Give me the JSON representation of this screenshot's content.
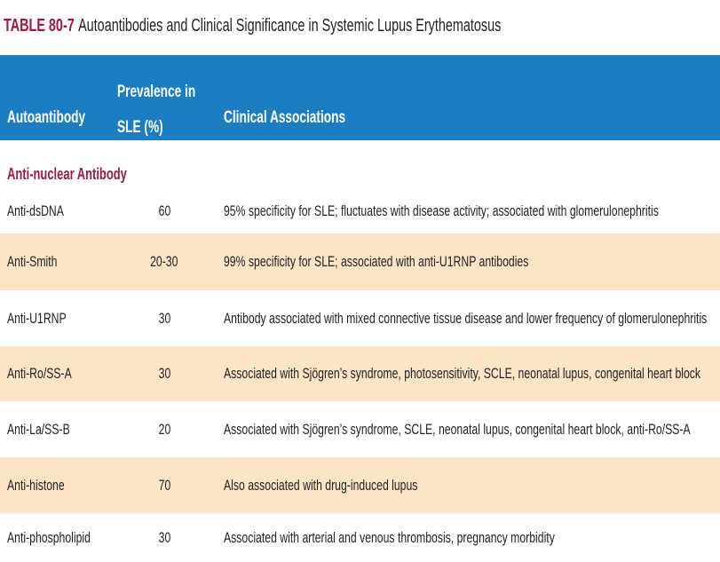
{
  "title": {
    "label": "TABLE 80-7",
    "text": "Autoantibodies and Clinical Significance in Systemic Lupus Erythematosus"
  },
  "table": {
    "headers": [
      "Autoantibody",
      "Prevalence in SLE (%)",
      "Clinical Associations"
    ],
    "section": "Anti-nuclear Antibody",
    "rows": [
      [
        "Anti-dsDNA",
        "60",
        "95% specificity for SLE; fluctuates with disease activity; associated with glomerulonephritis"
      ],
      [
        "Anti-Smith",
        "20-30",
        "99% specificity for SLE; associated with anti-U1RNP antibodies"
      ],
      [
        "Anti-U1RNP",
        "30",
        "Antibody associated with mixed connective tissue disease and lower frequency of glomerulonephritis"
      ],
      [
        "Anti-Ro/SS-A",
        "30",
        "Associated with Sjögren’s syndrome, photosensitivity, SCLE, neonatal lupus, congenital heart block"
      ],
      [
        "Anti-La/SS-B",
        "20",
        "Associated with Sjögren’s syndrome, SCLE, neonatal lupus, congenital heart block, anti-Ro/SS-A"
      ],
      [
        "Anti-histone",
        "70",
        "Also associated with drug-induced lupus"
      ],
      [
        "Anti-phospholipid",
        "30",
        "Associated with arterial and venous thrombosis, pregnancy morbidity"
      ]
    ]
  }
}
